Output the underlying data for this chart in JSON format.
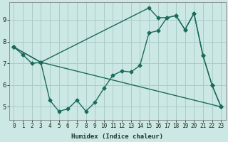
{
  "bg_color": "#cce8e4",
  "grid_color": "#aaccca",
  "line_color": "#1a6b5a",
  "xlabel": "Humidex (Indice chaleur)",
  "xlim": [
    -0.5,
    23.5
  ],
  "ylim": [
    4.4,
    9.8
  ],
  "xticks": [
    0,
    1,
    2,
    3,
    4,
    5,
    6,
    7,
    8,
    9,
    10,
    11,
    12,
    13,
    14,
    15,
    16,
    17,
    18,
    19,
    20,
    21,
    22,
    23
  ],
  "yticks": [
    5,
    6,
    7,
    8,
    9
  ],
  "line1_x": [
    0,
    1,
    2,
    3,
    4,
    5,
    6,
    7,
    8,
    9,
    10,
    11,
    12,
    13,
    14,
    15,
    16,
    17,
    18,
    19,
    20,
    21,
    22,
    23
  ],
  "line1_y": [
    7.75,
    7.4,
    7.0,
    7.05,
    5.3,
    4.8,
    4.9,
    5.3,
    4.8,
    5.2,
    5.85,
    6.45,
    6.65,
    6.6,
    6.9,
    8.4,
    8.5,
    9.1,
    9.2,
    8.55,
    9.3,
    7.35,
    6.0,
    5.0
  ],
  "line2_x": [
    0,
    3,
    23
  ],
  "line2_y": [
    7.75,
    7.05,
    5.0
  ],
  "line3_x": [
    0,
    3,
    15,
    16,
    17,
    18,
    19,
    20,
    21,
    22,
    23
  ],
  "line3_y": [
    7.75,
    7.05,
    9.55,
    9.1,
    9.1,
    9.2,
    8.55,
    9.3,
    7.35,
    6.0,
    5.0
  ],
  "marker": "D",
  "marker_size": 2.5,
  "line_width": 1.0
}
